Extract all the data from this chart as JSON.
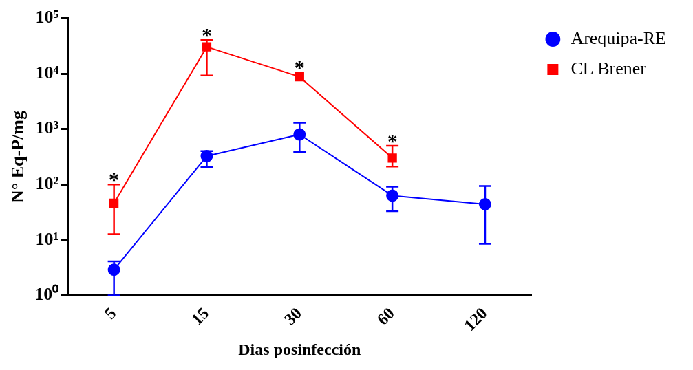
{
  "chart_data": {
    "type": "line",
    "ylabel": "N° Eq-P/mg",
    "xlabel": "Dias posinfección",
    "categories": [
      "5",
      "15",
      "30",
      "60",
      "120"
    ],
    "log": "y",
    "ylim": [
      1,
      100000
    ],
    "yticks": [
      {
        "value": 1,
        "label": "10⁰"
      },
      {
        "value": 10,
        "label": "10¹"
      },
      {
        "value": 100,
        "label": "10²"
      },
      {
        "value": 1000,
        "label": "10³"
      },
      {
        "value": 10000,
        "label": "10⁴"
      },
      {
        "value": 100000,
        "label": "10⁵"
      }
    ],
    "grid": false,
    "legend": "top right",
    "line_style": "solid",
    "series": [
      {
        "name": "Arequipa-RE",
        "color": "#0000ff",
        "marker": "circle",
        "values": [
          2.9,
          325,
          800,
          63,
          44
        ],
        "errors": [
          [
            1,
            4.1
          ],
          [
            205,
            400
          ],
          [
            385,
            1300
          ],
          [
            33,
            91
          ],
          [
            8.5,
            94
          ]
        ]
      },
      {
        "name": "CL Brener",
        "color": "#ff0000",
        "marker": "square",
        "values": [
          46,
          30500,
          8800,
          300,
          null
        ],
        "errors": [
          [
            12.7,
            100
          ],
          [
            9300,
            41000
          ],
          null,
          [
            210,
            500
          ],
          null
        ]
      }
    ],
    "annotations": [
      {
        "text": "*",
        "x": "5",
        "y": 100
      },
      {
        "text": "*",
        "x": "15",
        "y": 41000
      },
      {
        "text": "*",
        "x": "30",
        "y": 10500
      },
      {
        "text": "*",
        "x": "60",
        "y": 500
      }
    ]
  }
}
